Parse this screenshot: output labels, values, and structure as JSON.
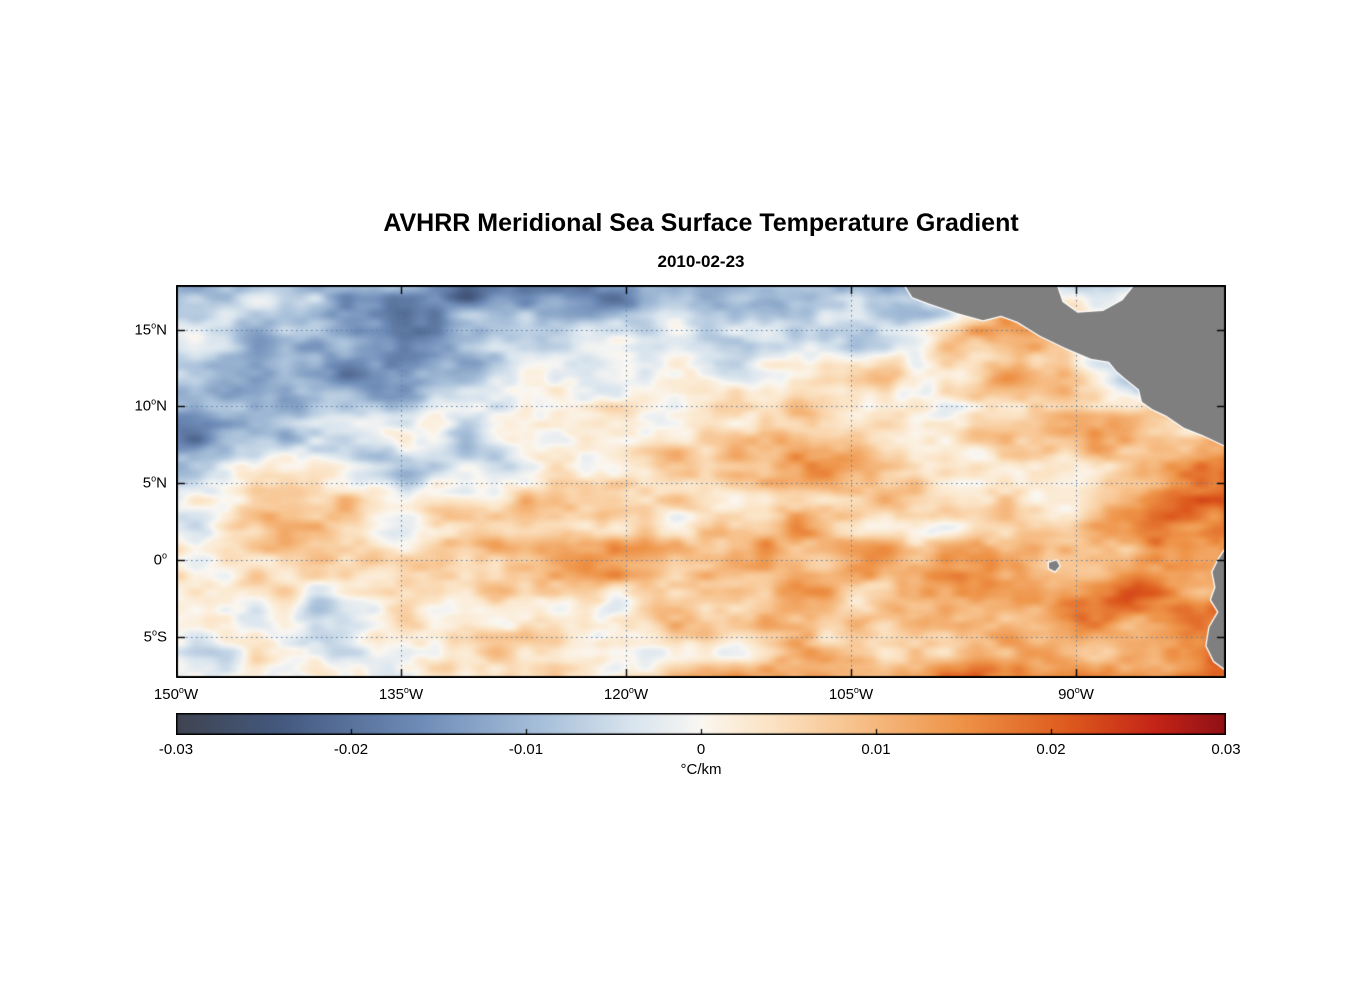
{
  "page": {
    "background": "#ffffff"
  },
  "chart_data": {
    "type": "heatmap",
    "title": "AVHRR Meridional Sea Surface Temperature Gradient",
    "subtitle": "2010-02-23",
    "grid_on": true,
    "axes_box": true,
    "grid_color": "#5b7fa6",
    "lon_range": [
      -150,
      -80
    ],
    "lat_range": [
      -7.7,
      17.9
    ],
    "x_axis": {
      "deg_mark": "o",
      "ticks": [
        {
          "num": "150",
          "dir": "W",
          "value": -150
        },
        {
          "num": "135",
          "dir": "W",
          "value": -135
        },
        {
          "num": "120",
          "dir": "W",
          "value": -120
        },
        {
          "num": "105",
          "dir": "W",
          "value": -105
        },
        {
          "num": "90",
          "dir": "W",
          "value": -90
        }
      ]
    },
    "y_axis": {
      "deg_mark": "o",
      "ticks": [
        {
          "num": "15",
          "dir": "N",
          "value": 15
        },
        {
          "num": "10",
          "dir": "N",
          "value": 10
        },
        {
          "num": "5",
          "dir": "N",
          "value": 5
        },
        {
          "num": "0",
          "dir": "",
          "value": 0
        },
        {
          "num": "5",
          "dir": "S",
          "value": -5
        }
      ]
    },
    "colorbar": {
      "min": -0.03,
      "max": 0.03,
      "unit": "°C/km",
      "ticks": [
        {
          "label": "-0.03",
          "value": -0.03
        },
        {
          "label": "-0.02",
          "value": -0.02
        },
        {
          "label": "-0.01",
          "value": -0.01
        },
        {
          "label": "0",
          "value": 0
        },
        {
          "label": "0.01",
          "value": 0.01
        },
        {
          "label": "0.02",
          "value": 0.02
        },
        {
          "label": "0.03",
          "value": 0.03
        }
      ]
    },
    "colormap": [
      {
        "v": -0.03,
        "c": "#3f4450"
      },
      {
        "v": -0.024,
        "c": "#44597f"
      },
      {
        "v": -0.016,
        "c": "#6e8cb8"
      },
      {
        "v": -0.009,
        "c": "#a8c0da"
      },
      {
        "v": -0.004,
        "c": "#d8e4ee"
      },
      {
        "v": -0.001,
        "c": "#f0f2f2"
      },
      {
        "v": 0.0,
        "c": "#faf7f2"
      },
      {
        "v": 0.001,
        "c": "#fbf2e4"
      },
      {
        "v": 0.004,
        "c": "#fbe3c4"
      },
      {
        "v": 0.009,
        "c": "#f7c089"
      },
      {
        "v": 0.015,
        "c": "#ee9246"
      },
      {
        "v": 0.021,
        "c": "#dd5a1d"
      },
      {
        "v": 0.026,
        "c": "#c42417"
      },
      {
        "v": 0.03,
        "c": "#8f1016"
      }
    ],
    "grid": {
      "comment": "coarse estimated meridional SST gradient field in degC/km read from the map colors",
      "lons": [
        -150,
        -143,
        -136,
        -129,
        -122,
        -115,
        -108,
        -101,
        -94,
        -87,
        -80
      ],
      "lats": [
        18,
        15,
        12,
        9,
        6,
        3,
        0,
        -3,
        -6,
        -9
      ],
      "values": [
        [
          -0.005,
          -0.009,
          -0.016,
          -0.019,
          -0.018,
          -0.015,
          -0.013,
          -0.012,
          0.0,
          0.0,
          0.0
        ],
        [
          -0.006,
          -0.011,
          -0.014,
          -0.007,
          -0.004,
          -0.005,
          -0.004,
          -0.004,
          0.016,
          0.004,
          0.0
        ],
        [
          -0.007,
          -0.01,
          -0.015,
          -0.005,
          -0.001,
          0.001,
          0.001,
          0.003,
          0.009,
          -0.004,
          0.008
        ],
        [
          -0.015,
          -0.005,
          -0.002,
          0.001,
          0.002,
          0.001,
          0.003,
          0.003,
          0.01,
          0.012,
          0.005
        ],
        [
          -0.01,
          0.006,
          -0.004,
          -0.008,
          0.001,
          0.005,
          0.01,
          0.003,
          0.001,
          0.008,
          0.02
        ],
        [
          0.002,
          0.004,
          0.006,
          0.008,
          0.003,
          0.005,
          0.007,
          0.005,
          0.006,
          0.01,
          0.022
        ],
        [
          0.004,
          0.003,
          0.006,
          0.009,
          0.012,
          0.012,
          0.014,
          0.01,
          0.01,
          0.012,
          0.015
        ],
        [
          0.0,
          -0.002,
          0.001,
          0.0,
          0.002,
          0.005,
          0.008,
          0.01,
          0.013,
          0.02,
          0.016
        ],
        [
          0.002,
          0.0,
          0.002,
          0.003,
          0.004,
          0.006,
          0.008,
          0.012,
          0.016,
          0.01,
          0.017
        ],
        [
          0.002,
          0.002,
          0.003,
          0.004,
          0.006,
          0.008,
          0.01,
          0.012,
          0.014,
          0.016,
          0.018
        ]
      ]
    },
    "land": {
      "color": "#7f7f7f",
      "coast_color": "#ffffff",
      "polygons": [
        {
          "name": "central-america",
          "points": [
            [
              -101.8,
              18.5
            ],
            [
              -100.9,
              17.1
            ],
            [
              -99.8,
              16.7
            ],
            [
              -98.0,
              16.1
            ],
            [
              -96.2,
              15.6
            ],
            [
              -95.0,
              15.9
            ],
            [
              -93.9,
              15.5
            ],
            [
              -92.4,
              14.6
            ],
            [
              -90.7,
              13.8
            ],
            [
              -89.0,
              13.1
            ],
            [
              -87.8,
              12.9
            ],
            [
              -87.3,
              12.3
            ],
            [
              -86.7,
              11.8
            ],
            [
              -85.8,
              11.1
            ],
            [
              -85.6,
              10.3
            ],
            [
              -84.9,
              9.8
            ],
            [
              -84.0,
              9.4
            ],
            [
              -82.8,
              8.6
            ],
            [
              -81.5,
              8.1
            ],
            [
              -80.2,
              7.5
            ],
            [
              -79.2,
              7.2
            ],
            [
              -79.2,
              18.5
            ],
            [
              -85.6,
              18.5
            ],
            [
              -86.9,
              16.9
            ],
            [
              -88.2,
              16.2
            ],
            [
              -89.9,
              16.1
            ],
            [
              -90.9,
              16.8
            ],
            [
              -91.5,
              18.5
            ]
          ]
        },
        {
          "name": "south-america",
          "points": [
            [
              -79.5,
              1.5
            ],
            [
              -80.1,
              0.6
            ],
            [
              -80.5,
              0.0
            ],
            [
              -80.9,
              -0.8
            ],
            [
              -80.7,
              -1.8
            ],
            [
              -81.0,
              -2.6
            ],
            [
              -80.5,
              -3.4
            ],
            [
              -81.1,
              -4.4
            ],
            [
              -81.3,
              -5.6
            ],
            [
              -80.8,
              -6.6
            ],
            [
              -80.1,
              -7.1
            ],
            [
              -79.6,
              -7.9
            ],
            [
              -79.0,
              -8.2
            ],
            [
              -79.0,
              1.5
            ]
          ]
        },
        {
          "name": "galapagos-island",
          "points": [
            [
              -91.8,
              -0.2
            ],
            [
              -91.3,
              -0.05
            ],
            [
              -91.1,
              -0.4
            ],
            [
              -91.4,
              -0.75
            ],
            [
              -91.8,
              -0.55
            ]
          ]
        }
      ]
    }
  }
}
